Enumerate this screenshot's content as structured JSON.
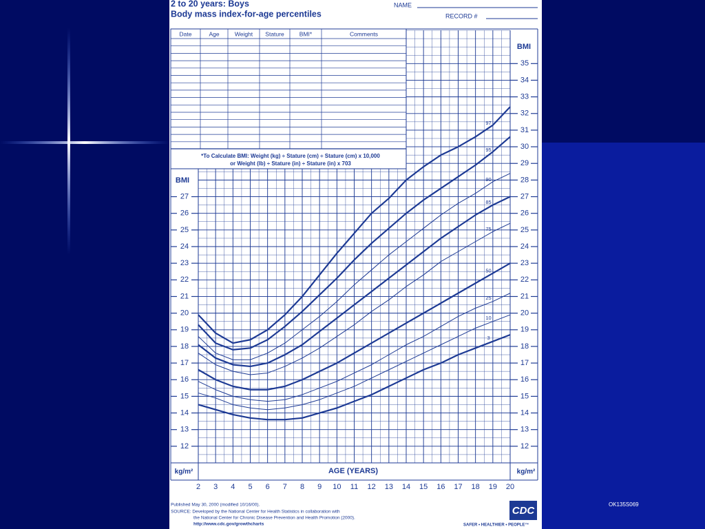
{
  "header": {
    "title": "2 to 20 years: Boys",
    "subtitle": "Body mass index-for-age percentiles",
    "name_label": "NAME",
    "record_label": "RECORD #"
  },
  "table": {
    "columns": [
      "Date",
      "Age",
      "Weight",
      "Stature",
      "BMI*",
      "Comments"
    ],
    "formula": [
      "*To Calculate BMI: Weight (kg) ÷ Stature (cm) ÷ Stature (cm) x 10,000",
      "or Weight (lb) ÷ Stature (in) ÷ Stature (in) x 703"
    ]
  },
  "chart_data": {
    "type": "line",
    "xlabel": "AGE (YEARS)",
    "ylabel": "BMI",
    "y2label": "BMI",
    "yunit": "kg/m²",
    "y2unit": "kg/m²",
    "x": [
      2,
      3,
      4,
      5,
      6,
      7,
      8,
      9,
      10,
      11,
      12,
      13,
      14,
      15,
      16,
      17,
      18,
      19,
      20
    ],
    "xlim": [
      2,
      20
    ],
    "xticks": [
      2,
      3,
      4,
      5,
      6,
      7,
      8,
      9,
      10,
      11,
      12,
      13,
      14,
      15,
      16,
      17,
      18,
      19,
      20
    ],
    "ylim": [
      11,
      37
    ],
    "yticks": [
      12,
      13,
      14,
      15,
      16,
      17,
      18,
      19,
      20,
      21,
      22,
      23,
      24,
      25,
      26,
      27
    ],
    "y2lim": [
      11,
      37
    ],
    "y2ticks": [
      12,
      13,
      14,
      15,
      16,
      17,
      18,
      19,
      20,
      21,
      22,
      23,
      24,
      25,
      26,
      27,
      28,
      29,
      30,
      31,
      32,
      33,
      34,
      35
    ],
    "grid": true,
    "series": [
      {
        "name": "97",
        "color": "#1d3a94",
        "line_width": 2.2,
        "values": [
          19.9,
          18.8,
          18.2,
          18.4,
          19.0,
          19.9,
          21.0,
          22.3,
          23.6,
          24.8,
          26.0,
          26.9,
          28.0,
          28.8,
          29.5,
          30.0,
          30.6,
          31.3,
          32.4
        ]
      },
      {
        "name": "95",
        "color": "#1d3a94",
        "line_width": 2.2,
        "values": [
          19.3,
          18.2,
          17.8,
          17.9,
          18.4,
          19.2,
          20.1,
          21.1,
          22.1,
          23.2,
          24.2,
          25.1,
          26.0,
          26.8,
          27.5,
          28.2,
          28.9,
          29.7,
          30.6
        ]
      },
      {
        "name": "90",
        "color": "#1d3a94",
        "line_width": 1,
        "values": [
          18.6,
          17.6,
          17.2,
          17.2,
          17.6,
          18.2,
          19.0,
          19.8,
          20.7,
          21.7,
          22.6,
          23.5,
          24.3,
          25.1,
          25.9,
          26.6,
          27.2,
          27.9,
          28.4
        ]
      },
      {
        "name": "85",
        "color": "#1d3a94",
        "line_width": 2.2,
        "values": [
          18.1,
          17.3,
          16.9,
          16.8,
          17.0,
          17.5,
          18.1,
          18.9,
          19.7,
          20.5,
          21.3,
          22.1,
          22.9,
          23.7,
          24.5,
          25.2,
          25.9,
          26.5,
          27.0
        ]
      },
      {
        "name": "75",
        "color": "#1d3a94",
        "line_width": 1,
        "values": [
          17.6,
          16.9,
          16.5,
          16.3,
          16.4,
          16.8,
          17.3,
          17.9,
          18.6,
          19.3,
          20.1,
          20.8,
          21.6,
          22.3,
          23.1,
          23.7,
          24.3,
          24.9,
          25.4
        ]
      },
      {
        "name": "50",
        "color": "#1d3a94",
        "line_width": 2.2,
        "values": [
          16.6,
          16.0,
          15.6,
          15.4,
          15.4,
          15.6,
          16.0,
          16.5,
          17.0,
          17.6,
          18.2,
          18.8,
          19.4,
          20.0,
          20.6,
          21.2,
          21.8,
          22.4,
          23.0
        ]
      },
      {
        "name": "25",
        "color": "#1d3a94",
        "line_width": 1,
        "values": [
          15.9,
          15.4,
          15.0,
          14.8,
          14.7,
          14.8,
          15.1,
          15.5,
          15.9,
          16.4,
          16.9,
          17.5,
          18.1,
          18.6,
          19.2,
          19.8,
          20.3,
          20.7,
          21.2
        ]
      },
      {
        "name": "10",
        "color": "#1d3a94",
        "line_width": 1,
        "values": [
          15.2,
          14.9,
          14.5,
          14.3,
          14.2,
          14.3,
          14.5,
          14.8,
          15.2,
          15.6,
          16.1,
          16.6,
          17.1,
          17.6,
          18.1,
          18.6,
          19.1,
          19.5,
          19.9
        ]
      },
      {
        "name": "3",
        "color": "#1d3a94",
        "line_width": 2.2,
        "values": [
          14.5,
          14.2,
          13.9,
          13.7,
          13.6,
          13.6,
          13.7,
          14.0,
          14.3,
          14.7,
          15.1,
          15.6,
          16.1,
          16.6,
          17.0,
          17.5,
          17.9,
          18.3,
          18.7
        ]
      }
    ]
  },
  "footer": {
    "published": "Published May 30, 2000 (modified 10/16/00).",
    "source": "SOURCE: Developed by the National Center for Health Statistics in collaboration with",
    "source2": "the National Center for Chronic Disease Prevention and Health Promotion (2000).",
    "url": "http://www.cdc.gov/growthcharts",
    "logo": "CDC",
    "slogan": "SAFER • HEALTHIER • PEOPLE™"
  },
  "slide": {
    "code": "OK135S069"
  }
}
